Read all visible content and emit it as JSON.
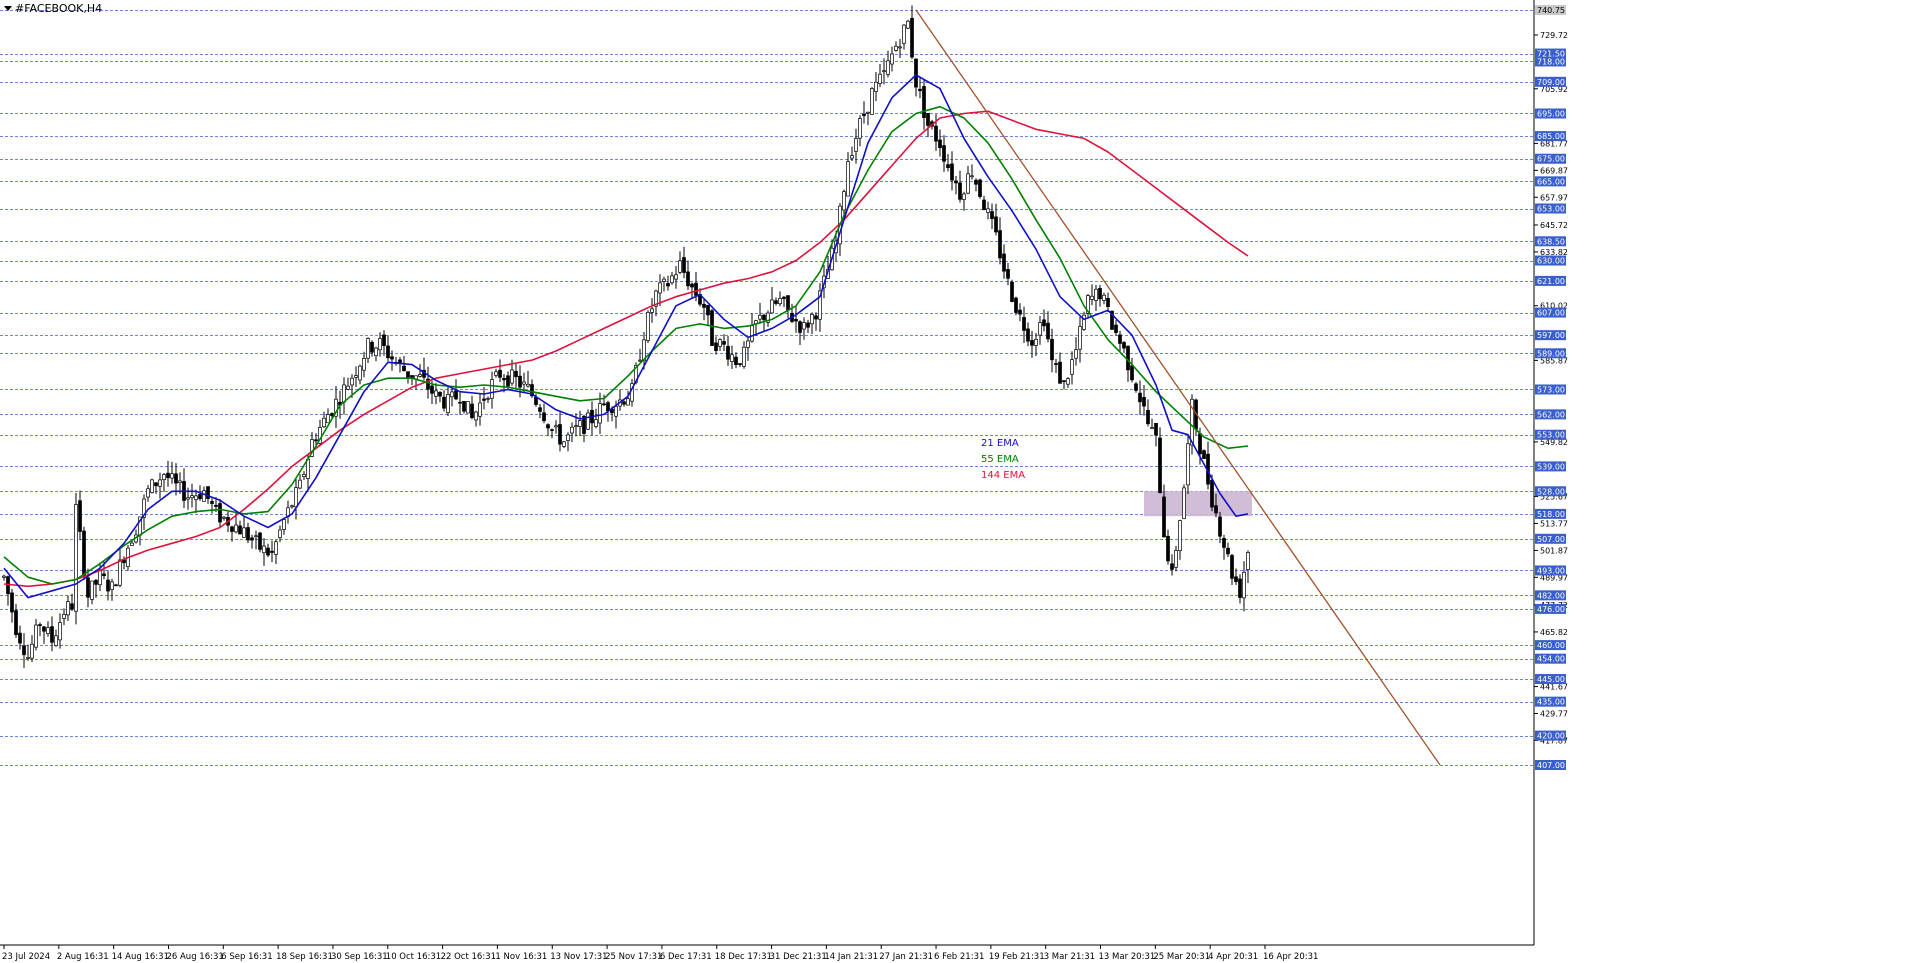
{
  "chart_data": {
    "type": "candlestick",
    "title": "#FACEBOOK,H4",
    "ylim": [
      405.5,
      745
    ],
    "levels": [
      740.75,
      721.5,
      718.0,
      709.0,
      695.0,
      685.0,
      675.0,
      665.0,
      653.0,
      638.5,
      630.0,
      621.0,
      607.0,
      597.0,
      589.0,
      573.0,
      562.0,
      553.0,
      539.0,
      528.0,
      518.0,
      507.0,
      493.0,
      482.0,
      476.0,
      460.0,
      454.0,
      445.0,
      435.0,
      420.0,
      407.0
    ],
    "level_labels": [
      "740.75",
      "721.50",
      "718.00",
      "709.00",
      "695.00",
      "685.00",
      "675.00",
      "665.00",
      "653.00",
      "638.50",
      "630.00",
      "621.00",
      "607.00",
      "597.00",
      "589.00",
      "573.00",
      "562.00",
      "553.00",
      "539.00",
      "528.00",
      "518.00",
      "507.00",
      "493.00",
      "482.00",
      "476.00",
      "460.00",
      "454.00",
      "445.00",
      "435.00",
      "420.00",
      "407.00"
    ],
    "scale_ticks": [
      "729.72",
      "705.92",
      "681.77",
      "669.87",
      "657.97",
      "645.72",
      "633.82",
      "610.02",
      "585.87",
      "549.82",
      "525.67",
      "513.77",
      "501.87",
      "489.97",
      "477.72",
      "465.82",
      "441.67",
      "429.77",
      "417.87"
    ],
    "x_labels": [
      "23 Jul 2024",
      "2 Aug 16:31",
      "14 Aug 16:31",
      "26 Aug 16:31",
      "6 Sep 16:31",
      "18 Sep 16:31",
      "30 Sep 16:31",
      "10 Oct 16:31",
      "22 Oct 16:31",
      "1 Nov 16:31",
      "13 Nov 17:31",
      "25 Nov 17:31",
      "6 Dec 17:31",
      "18 Dec 17:31",
      "31 Dec 21:31",
      "14 Jan 21:31",
      "27 Jan 21:31",
      "6 Feb 21:31",
      "19 Feb 21:31",
      "3 Mar 21:31",
      "13 Mar 20:31",
      "25 Mar 20:31",
      "4 Apr 20:31",
      "16 Apr 20:31"
    ],
    "legend": [
      {
        "name": "21 EMA",
        "color": "#1010c8"
      },
      {
        "name": "55 EMA",
        "color": "#008000"
      },
      {
        "name": "144 EMA",
        "color": "#dc143c"
      }
    ],
    "price_path": [
      [
        0,
        490
      ],
      [
        3,
        468
      ],
      [
        6,
        455
      ],
      [
        9,
        470
      ],
      [
        12,
        462
      ],
      [
        15,
        475
      ],
      [
        17,
        478
      ],
      [
        18,
        520
      ],
      [
        21,
        482
      ],
      [
        24,
        490
      ],
      [
        27,
        485
      ],
      [
        30,
        500
      ],
      [
        33,
        512
      ],
      [
        36,
        528
      ],
      [
        40,
        536
      ],
      [
        43,
        530
      ],
      [
        46,
        526
      ],
      [
        50,
        528
      ],
      [
        53,
        518
      ],
      [
        57,
        514
      ],
      [
        60,
        510
      ],
      [
        64,
        503
      ],
      [
        67,
        500
      ],
      [
        70,
        515
      ],
      [
        74,
        530
      ],
      [
        77,
        550
      ],
      [
        81,
        562
      ],
      [
        84,
        570
      ],
      [
        88,
        582
      ],
      [
        91,
        592
      ],
      [
        94,
        593
      ],
      [
        98,
        585
      ],
      [
        101,
        580
      ],
      [
        104,
        578
      ],
      [
        108,
        570
      ],
      [
        111,
        567
      ],
      [
        114,
        571
      ],
      [
        117,
        560
      ],
      [
        121,
        573
      ],
      [
        124,
        580
      ],
      [
        128,
        577
      ],
      [
        131,
        573
      ],
      [
        134,
        566
      ],
      [
        137,
        555
      ],
      [
        140,
        550
      ],
      [
        143,
        555
      ],
      [
        147,
        560
      ],
      [
        150,
        566
      ],
      [
        153,
        567
      ],
      [
        157,
        572
      ],
      [
        160,
        598
      ],
      [
        163,
        615
      ],
      [
        166,
        620
      ],
      [
        169,
        628
      ],
      [
        172,
        618
      ],
      [
        175,
        610
      ],
      [
        177,
        595
      ],
      [
        180,
        592
      ],
      [
        183,
        586
      ],
      [
        185,
        588
      ],
      [
        188,
        602
      ],
      [
        191,
        608
      ],
      [
        194,
        612
      ],
      [
        197,
        605
      ],
      [
        200,
        600
      ],
      [
        203,
        608
      ],
      [
        205,
        620
      ],
      [
        208,
        638
      ],
      [
        211,
        675
      ],
      [
        214,
        690
      ],
      [
        217,
        704
      ],
      [
        220,
        712
      ],
      [
        223,
        725
      ],
      [
        226,
        735
      ],
      [
        228,
        709
      ],
      [
        231,
        690
      ],
      [
        234,
        682
      ],
      [
        236,
        672
      ],
      [
        239,
        660
      ],
      [
        242,
        670
      ],
      [
        245,
        655
      ],
      [
        248,
        640
      ],
      [
        251,
        620
      ],
      [
        254,
        605
      ],
      [
        257,
        595
      ],
      [
        260,
        605
      ],
      [
        262,
        585
      ],
      [
        265,
        575
      ],
      [
        268,
        590
      ],
      [
        271,
        612
      ],
      [
        274,
        616
      ],
      [
        277,
        602
      ],
      [
        280,
        590
      ],
      [
        283,
        575
      ],
      [
        286,
        558
      ],
      [
        288,
        550
      ],
      [
        290,
        510
      ],
      [
        292,
        490
      ],
      [
        295,
        530
      ],
      [
        297,
        565
      ],
      [
        300,
        540
      ],
      [
        302,
        525
      ],
      [
        305,
        505
      ],
      [
        307,
        492
      ],
      [
        309,
        484
      ],
      [
        311,
        502
      ]
    ],
    "ema21": [
      [
        0,
        494
      ],
      [
        6,
        481
      ],
      [
        12,
        484
      ],
      [
        18,
        487
      ],
      [
        24,
        494
      ],
      [
        30,
        505
      ],
      [
        36,
        520
      ],
      [
        42,
        528
      ],
      [
        48,
        528
      ],
      [
        54,
        524
      ],
      [
        60,
        517
      ],
      [
        66,
        512
      ],
      [
        72,
        518
      ],
      [
        78,
        534
      ],
      [
        84,
        553
      ],
      [
        90,
        572
      ],
      [
        96,
        585
      ],
      [
        102,
        584
      ],
      [
        108,
        577
      ],
      [
        114,
        572
      ],
      [
        120,
        571
      ],
      [
        126,
        573
      ],
      [
        132,
        571
      ],
      [
        138,
        564
      ],
      [
        144,
        560
      ],
      [
        150,
        562
      ],
      [
        156,
        570
      ],
      [
        162,
        590
      ],
      [
        168,
        610
      ],
      [
        174,
        615
      ],
      [
        180,
        604
      ],
      [
        186,
        596
      ],
      [
        192,
        600
      ],
      [
        198,
        606
      ],
      [
        204,
        614
      ],
      [
        210,
        648
      ],
      [
        216,
        682
      ],
      [
        222,
        702
      ],
      [
        228,
        712
      ],
      [
        234,
        706
      ],
      [
        240,
        684
      ],
      [
        246,
        667
      ],
      [
        252,
        652
      ],
      [
        258,
        635
      ],
      [
        264,
        614
      ],
      [
        270,
        604
      ],
      [
        276,
        608
      ],
      [
        282,
        597
      ],
      [
        288,
        575
      ],
      [
        292,
        555
      ],
      [
        296,
        553
      ],
      [
        300,
        540
      ],
      [
        304,
        527
      ],
      [
        308,
        517
      ],
      [
        311,
        518
      ]
    ],
    "ema55": [
      [
        0,
        499
      ],
      [
        6,
        490
      ],
      [
        12,
        487
      ],
      [
        18,
        489
      ],
      [
        24,
        496
      ],
      [
        30,
        504
      ],
      [
        36,
        511
      ],
      [
        42,
        517
      ],
      [
        48,
        519
      ],
      [
        54,
        520
      ],
      [
        60,
        518
      ],
      [
        66,
        519
      ],
      [
        72,
        531
      ],
      [
        78,
        548
      ],
      [
        84,
        566
      ],
      [
        90,
        575
      ],
      [
        96,
        578
      ],
      [
        102,
        578
      ],
      [
        108,
        575
      ],
      [
        114,
        574
      ],
      [
        120,
        575
      ],
      [
        126,
        574
      ],
      [
        132,
        572
      ],
      [
        138,
        570
      ],
      [
        144,
        568
      ],
      [
        150,
        569
      ],
      [
        156,
        579
      ],
      [
        162,
        590
      ],
      [
        168,
        600
      ],
      [
        174,
        602
      ],
      [
        180,
        600
      ],
      [
        186,
        601
      ],
      [
        192,
        604
      ],
      [
        198,
        610
      ],
      [
        204,
        625
      ],
      [
        210,
        650
      ],
      [
        216,
        670
      ],
      [
        222,
        687
      ],
      [
        228,
        695
      ],
      [
        234,
        698
      ],
      [
        240,
        693
      ],
      [
        246,
        682
      ],
      [
        252,
        666
      ],
      [
        258,
        648
      ],
      [
        264,
        631
      ],
      [
        270,
        610
      ],
      [
        276,
        595
      ],
      [
        282,
        584
      ],
      [
        288,
        572
      ],
      [
        294,
        562
      ],
      [
        300,
        552
      ],
      [
        306,
        547
      ],
      [
        311,
        548
      ]
    ],
    "ema144": [
      [
        0,
        487
      ],
      [
        6,
        486
      ],
      [
        12,
        487
      ],
      [
        18,
        489
      ],
      [
        24,
        493
      ],
      [
        30,
        498
      ],
      [
        36,
        502
      ],
      [
        42,
        505
      ],
      [
        48,
        508
      ],
      [
        54,
        512
      ],
      [
        60,
        520
      ],
      [
        66,
        529
      ],
      [
        72,
        539
      ],
      [
        78,
        547
      ],
      [
        84,
        555
      ],
      [
        90,
        562
      ],
      [
        96,
        568
      ],
      [
        102,
        574
      ],
      [
        108,
        578
      ],
      [
        114,
        580
      ],
      [
        120,
        582
      ],
      [
        126,
        584
      ],
      [
        132,
        586
      ],
      [
        138,
        590
      ],
      [
        144,
        595
      ],
      [
        150,
        600
      ],
      [
        156,
        605
      ],
      [
        162,
        610
      ],
      [
        168,
        614
      ],
      [
        174,
        617
      ],
      [
        180,
        620
      ],
      [
        186,
        622
      ],
      [
        192,
        625
      ],
      [
        198,
        630
      ],
      [
        204,
        638
      ],
      [
        210,
        648
      ],
      [
        216,
        660
      ],
      [
        222,
        672
      ],
      [
        228,
        684
      ],
      [
        234,
        693
      ],
      [
        240,
        695
      ],
      [
        246,
        696
      ],
      [
        252,
        692
      ],
      [
        258,
        688
      ],
      [
        264,
        686
      ],
      [
        270,
        684
      ],
      [
        276,
        678
      ],
      [
        282,
        670
      ],
      [
        288,
        662
      ],
      [
        294,
        654
      ],
      [
        300,
        646
      ],
      [
        306,
        638
      ],
      [
        311,
        632
      ]
    ],
    "trendline": [
      [
        228,
        740.75
      ],
      [
        359,
        407
      ]
    ],
    "zone": {
      "x": [
        285,
        312
      ],
      "y": [
        517,
        528
      ]
    },
    "highlight_level": 740.75
  }
}
